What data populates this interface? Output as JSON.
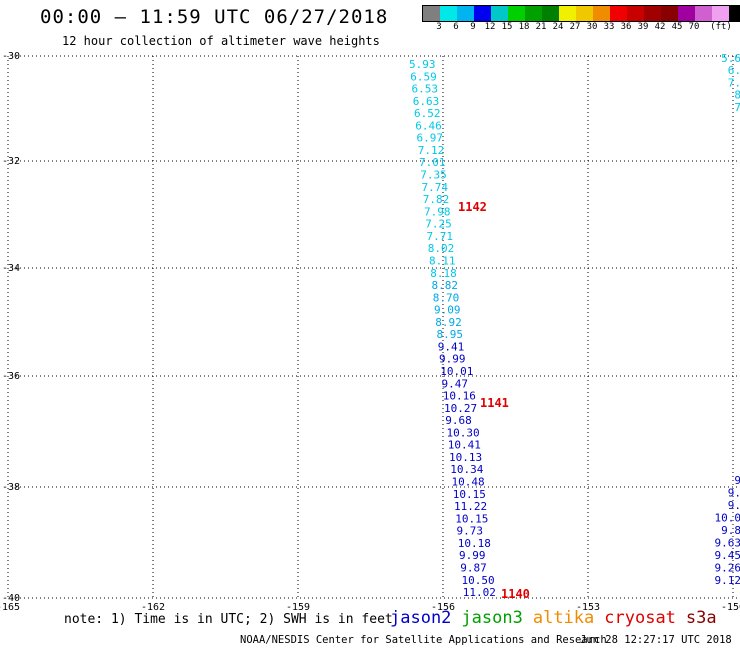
{
  "header": {
    "title": "00:00 — 11:59 UTC 06/27/2018",
    "subtitle": "12 hour collection of altimeter wave heights"
  },
  "color_scale": {
    "colors": [
      "#7f7f7f",
      "#00e8e8",
      "#00b4f0",
      "#0000f0",
      "#00c8c8",
      "#00d000",
      "#00a000",
      "#008000",
      "#f0f000",
      "#f0c800",
      "#f08c00",
      "#f00000",
      "#c80000",
      "#a00000",
      "#880000",
      "#a000a0",
      "#d060d0",
      "#f0a0f0",
      "#000000"
    ],
    "labels": [
      "3",
      "6",
      "9",
      "12",
      "15",
      "18",
      "21",
      "24",
      "27",
      "30",
      "33",
      "36",
      "39",
      "42",
      "45",
      "70",
      "(ft)"
    ]
  },
  "map": {
    "lat_labels": [
      "-30",
      "-32",
      "-34",
      "-36",
      "-38",
      "-40"
    ],
    "lon_labels": [
      "-165",
      "-162",
      "-159",
      "-156",
      "-153",
      "-150"
    ]
  },
  "tracks": [
    {
      "name": "track-main",
      "points": [
        {
          "v": "5.93",
          "c": "#00c8e8"
        },
        {
          "v": "6.59",
          "c": "#00c8e8"
        },
        {
          "v": "6.53",
          "c": "#00c8e8"
        },
        {
          "v": "6.63",
          "c": "#00c8e8"
        },
        {
          "v": "6.52",
          "c": "#00c8e8"
        },
        {
          "v": "6.46",
          "c": "#00c8e8"
        },
        {
          "v": "6.97",
          "c": "#00c8e8"
        },
        {
          "v": "7.12",
          "c": "#00c8e8"
        },
        {
          "v": "7.01",
          "c": "#00c8e8"
        },
        {
          "v": "7.35",
          "c": "#00c8e8"
        },
        {
          "v": "7.74",
          "c": "#00c8e8"
        },
        {
          "v": "7.82",
          "c": "#00c8e8"
        },
        {
          "v": "7.98",
          "c": "#00c8e8"
        },
        {
          "v": "7.25",
          "c": "#00c8e8"
        },
        {
          "v": "7.71",
          "c": "#00c8e8"
        },
        {
          "v": "8.02",
          "c": "#00c8e8"
        },
        {
          "v": "8.11",
          "c": "#00c8e8"
        },
        {
          "v": "8.18",
          "c": "#00c8e8"
        },
        {
          "v": "8.82",
          "c": "#00a8e8"
        },
        {
          "v": "8.70",
          "c": "#00a8e8"
        },
        {
          "v": "9.09",
          "c": "#00a8e8"
        },
        {
          "v": "8.92",
          "c": "#00a8e8"
        },
        {
          "v": "8.95",
          "c": "#00a8e8"
        },
        {
          "v": "9.41",
          "c": "#0000c8"
        },
        {
          "v": "9.99",
          "c": "#0000c8"
        },
        {
          "v": "10.01",
          "c": "#0000c8"
        },
        {
          "v": "9.47",
          "c": "#0000c8"
        },
        {
          "v": "10.16",
          "c": "#0000c8"
        },
        {
          "v": "10.27",
          "c": "#0000c8"
        },
        {
          "v": "9.68",
          "c": "#0000c8"
        },
        {
          "v": "10.30",
          "c": "#0000c8"
        },
        {
          "v": "10.41",
          "c": "#0000c8"
        },
        {
          "v": "10.13",
          "c": "#0000c8"
        },
        {
          "v": "10.34",
          "c": "#0000c8"
        },
        {
          "v": "10.48",
          "c": "#0000c8"
        },
        {
          "v": "10.15",
          "c": "#0000c8"
        },
        {
          "v": "11.22",
          "c": "#0000c8"
        },
        {
          "v": "10.15",
          "c": "#0000c8"
        },
        {
          "v": "9.73",
          "c": "#0000c8"
        },
        {
          "v": "10.18",
          "c": "#0000c8"
        },
        {
          "v": "9.99",
          "c": "#0000c8"
        },
        {
          "v": "9.87",
          "c": "#0000c8"
        },
        {
          "v": "10.50",
          "c": "#0000c8"
        },
        {
          "v": "11.02",
          "c": "#0000c8"
        }
      ]
    },
    {
      "name": "track-edge-top",
      "points": [
        {
          "v": "5.6",
          "c": "#00c8e8"
        },
        {
          "v": "6.",
          "c": "#00c8e8"
        },
        {
          "v": "7.",
          "c": "#00c8e8"
        },
        {
          "v": "8",
          "c": "#00c8e8"
        },
        {
          "v": "7",
          "c": "#00c8e8"
        }
      ]
    },
    {
      "name": "track-edge-bottom",
      "points": [
        {
          "v": "9",
          "c": "#0000c8"
        },
        {
          "v": "9.",
          "c": "#0000c8"
        },
        {
          "v": "9.",
          "c": "#0000c8"
        },
        {
          "v": "10.0",
          "c": "#0000c8"
        },
        {
          "v": "9.8",
          "c": "#0000c8"
        },
        {
          "v": "9.63",
          "c": "#0000c8"
        },
        {
          "v": "9.45",
          "c": "#0000c8"
        },
        {
          "v": "9.26",
          "c": "#0000c8"
        },
        {
          "v": "9.12",
          "c": "#0000c8"
        }
      ]
    }
  ],
  "pass_labels": [
    "1142",
    "1141",
    "1140"
  ],
  "note": "note: 1) Time is in UTC; 2) SWH is in feet",
  "satellites": [
    {
      "name": "jason2",
      "color": "#0000c8"
    },
    {
      "name": "jason3",
      "color": "#00a000"
    },
    {
      "name": "altika",
      "color": "#f08c00"
    },
    {
      "name": "cryosat",
      "color": "#e00000"
    },
    {
      "name": "s3a",
      "color": "#880000"
    }
  ],
  "footer": {
    "credit": "NOAA/NESDIS Center for Satellite Applications and Research",
    "timestamp": "Jun 28 12:27:17 UTC 2018"
  }
}
